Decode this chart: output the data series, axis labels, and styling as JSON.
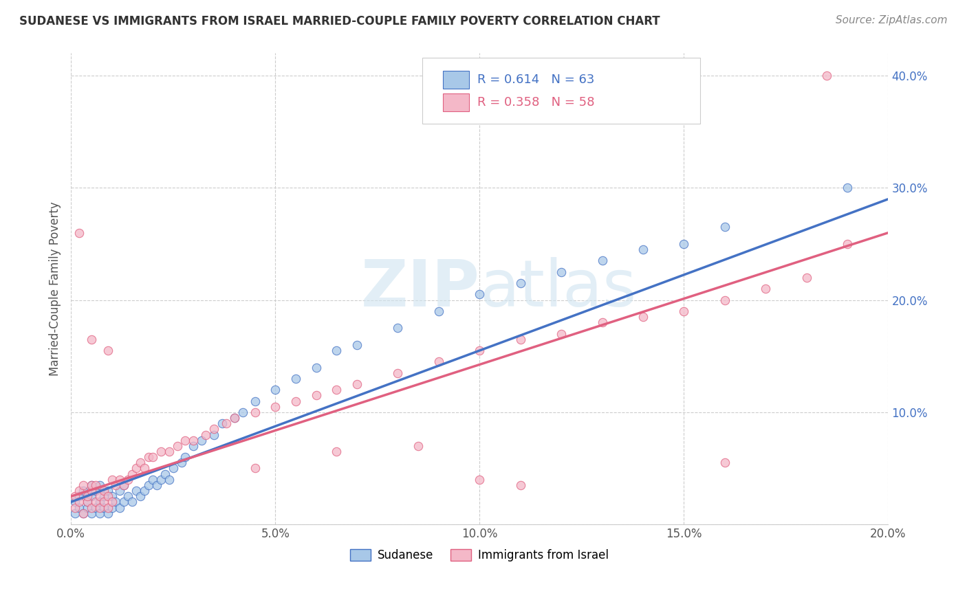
{
  "title": "SUDANESE VS IMMIGRANTS FROM ISRAEL MARRIED-COUPLE FAMILY POVERTY CORRELATION CHART",
  "source": "Source: ZipAtlas.com",
  "ylabel": "Married-Couple Family Poverty",
  "r_sudanese": 0.614,
  "n_sudanese": 63,
  "r_israel": 0.358,
  "n_israel": 58,
  "xmin": 0.0,
  "xmax": 0.2,
  "ymin": 0.0,
  "ymax": 0.42,
  "yticks": [
    0.0,
    0.1,
    0.2,
    0.3,
    0.4
  ],
  "xticks": [
    0.0,
    0.05,
    0.1,
    0.15,
    0.2
  ],
  "xtick_labels": [
    "0.0%",
    "5.0%",
    "10.0%",
    "15.0%",
    "20.0%"
  ],
  "ytick_labels": [
    "",
    "10.0%",
    "20.0%",
    "30.0%",
    "40.0%"
  ],
  "color_sudanese": "#a8c8e8",
  "color_israel": "#f4b8c8",
  "line_color_sudanese": "#4472c4",
  "line_color_israel": "#e06080",
  "watermark_color": "#d8e8f0",
  "legend_labels": [
    "Sudanese",
    "Immigrants from Israel"
  ],
  "sudanese_x": [
    0.001,
    0.001,
    0.002,
    0.002,
    0.003,
    0.003,
    0.004,
    0.004,
    0.005,
    0.005,
    0.005,
    0.006,
    0.006,
    0.007,
    0.007,
    0.007,
    0.008,
    0.008,
    0.009,
    0.009,
    0.01,
    0.01,
    0.011,
    0.012,
    0.012,
    0.013,
    0.013,
    0.014,
    0.015,
    0.016,
    0.017,
    0.018,
    0.019,
    0.02,
    0.021,
    0.022,
    0.023,
    0.024,
    0.025,
    0.027,
    0.028,
    0.03,
    0.032,
    0.035,
    0.037,
    0.04,
    0.042,
    0.045,
    0.05,
    0.055,
    0.06,
    0.065,
    0.07,
    0.08,
    0.09,
    0.1,
    0.11,
    0.12,
    0.13,
    0.14,
    0.15,
    0.16,
    0.19
  ],
  "sudanese_y": [
    0.01,
    0.02,
    0.015,
    0.025,
    0.01,
    0.03,
    0.015,
    0.02,
    0.01,
    0.025,
    0.035,
    0.015,
    0.03,
    0.01,
    0.02,
    0.035,
    0.015,
    0.025,
    0.01,
    0.03,
    0.015,
    0.025,
    0.02,
    0.015,
    0.03,
    0.02,
    0.035,
    0.025,
    0.02,
    0.03,
    0.025,
    0.03,
    0.035,
    0.04,
    0.035,
    0.04,
    0.045,
    0.04,
    0.05,
    0.055,
    0.06,
    0.07,
    0.075,
    0.08,
    0.09,
    0.095,
    0.1,
    0.11,
    0.12,
    0.13,
    0.14,
    0.155,
    0.16,
    0.175,
    0.19,
    0.205,
    0.215,
    0.225,
    0.235,
    0.245,
    0.25,
    0.265,
    0.3
  ],
  "israel_x": [
    0.001,
    0.001,
    0.002,
    0.002,
    0.003,
    0.003,
    0.004,
    0.004,
    0.005,
    0.005,
    0.005,
    0.006,
    0.006,
    0.007,
    0.007,
    0.008,
    0.008,
    0.009,
    0.009,
    0.01,
    0.01,
    0.011,
    0.012,
    0.013,
    0.014,
    0.015,
    0.016,
    0.017,
    0.018,
    0.019,
    0.02,
    0.022,
    0.024,
    0.026,
    0.028,
    0.03,
    0.033,
    0.035,
    0.038,
    0.04,
    0.045,
    0.05,
    0.055,
    0.06,
    0.065,
    0.07,
    0.08,
    0.09,
    0.1,
    0.11,
    0.12,
    0.13,
    0.14,
    0.15,
    0.16,
    0.17,
    0.18,
    0.19
  ],
  "israel_y": [
    0.015,
    0.025,
    0.02,
    0.03,
    0.01,
    0.035,
    0.02,
    0.025,
    0.015,
    0.03,
    0.035,
    0.02,
    0.035,
    0.015,
    0.025,
    0.02,
    0.03,
    0.015,
    0.025,
    0.02,
    0.04,
    0.035,
    0.04,
    0.035,
    0.04,
    0.045,
    0.05,
    0.055,
    0.05,
    0.06,
    0.06,
    0.065,
    0.065,
    0.07,
    0.075,
    0.075,
    0.08,
    0.085,
    0.09,
    0.095,
    0.1,
    0.105,
    0.11,
    0.115,
    0.12,
    0.125,
    0.135,
    0.145,
    0.155,
    0.165,
    0.17,
    0.18,
    0.185,
    0.19,
    0.2,
    0.21,
    0.22,
    0.25
  ],
  "israel_outliers_x": [
    0.002,
    0.005,
    0.009,
    0.045,
    0.065,
    0.085,
    0.1,
    0.11,
    0.16,
    0.185
  ],
  "israel_outliers_y": [
    0.26,
    0.165,
    0.155,
    0.05,
    0.065,
    0.07,
    0.04,
    0.035,
    0.055,
    0.4
  ]
}
